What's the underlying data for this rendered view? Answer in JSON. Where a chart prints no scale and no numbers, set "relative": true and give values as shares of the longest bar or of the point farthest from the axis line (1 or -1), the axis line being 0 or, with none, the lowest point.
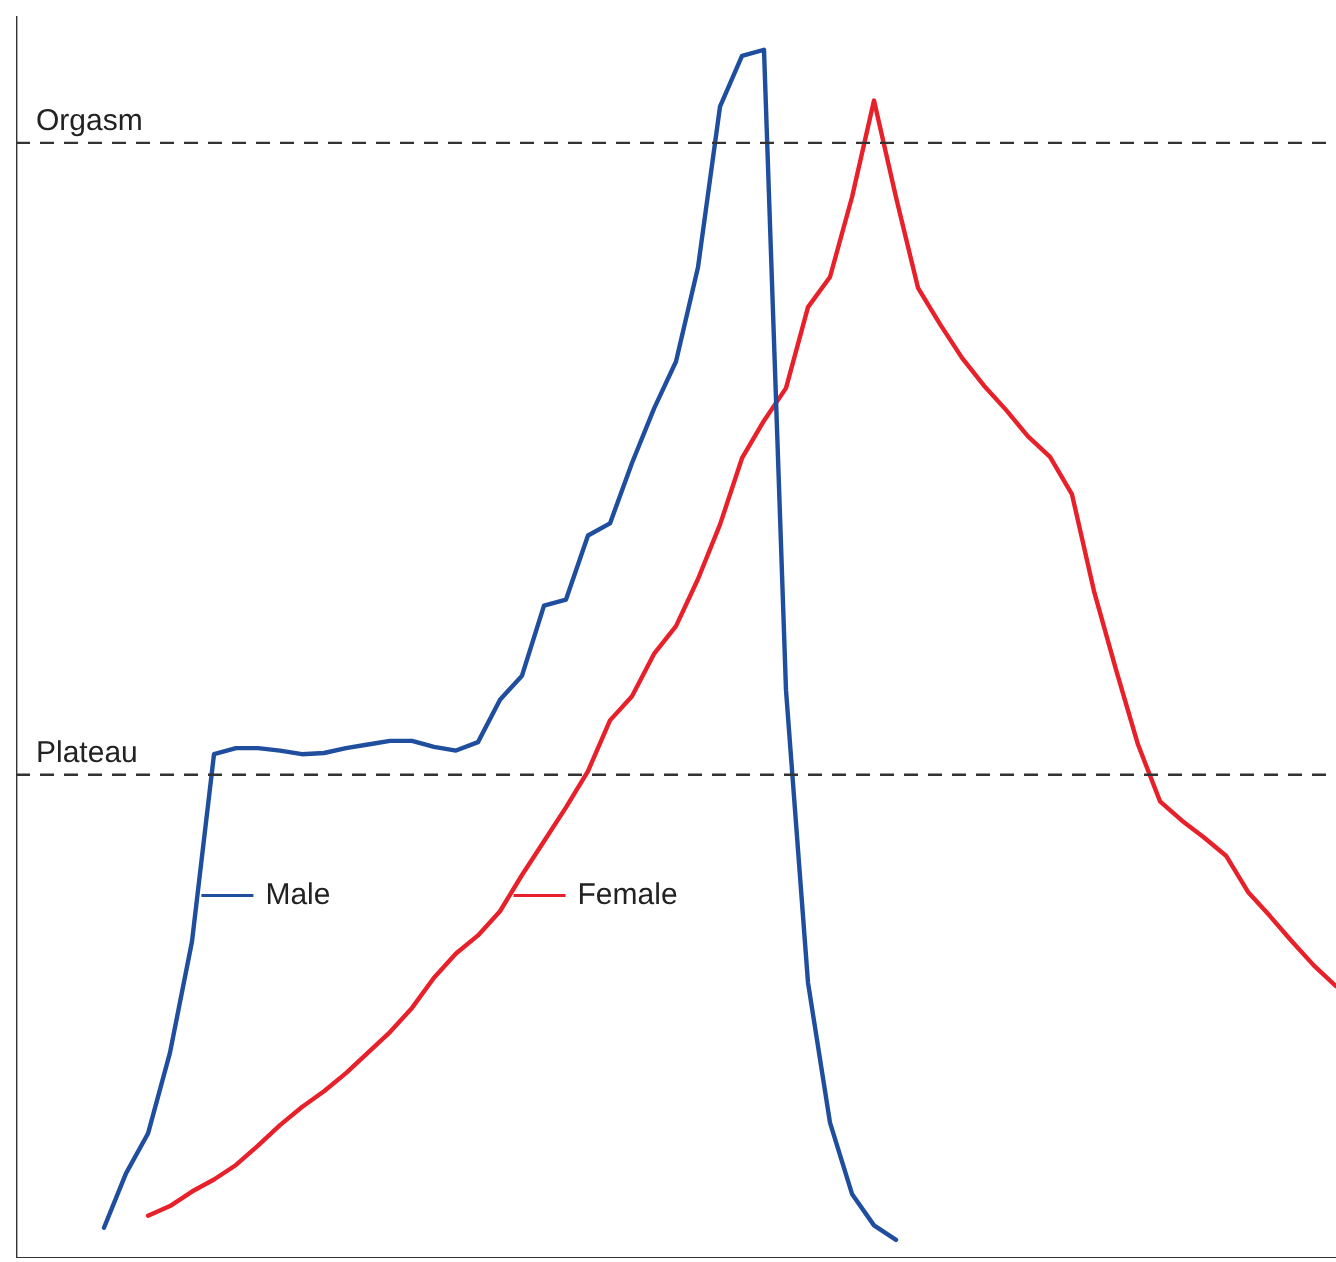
{
  "chart_data": {
    "type": "line",
    "relative": true,
    "grid": false,
    "legend": "bottom left",
    "marker": "none",
    "line_style": "solid",
    "categories": [
      null,
      null,
      null,
      null,
      null,
      null,
      null,
      null,
      null,
      null,
      null,
      null,
      null,
      null,
      null,
      null,
      null,
      null,
      null,
      null,
      null,
      null,
      null,
      null,
      null,
      null,
      null,
      null,
      null,
      null,
      null,
      null,
      null,
      null,
      null,
      null,
      null,
      null,
      null,
      null,
      null,
      null,
      null,
      null,
      null,
      null,
      null,
      null,
      null,
      null,
      null,
      null,
      null,
      null,
      null,
      null,
      null,
      null,
      null,
      null,
      null
    ],
    "series": [
      {
        "name": "Male",
        "color": "#1f4e9e",
        "values": [
          null,
          null,
          null,
          null,
          0.025,
          0.07,
          0.103,
          0.17,
          0.262,
          0.417,
          0.422,
          0.422,
          0.42,
          0.417,
          0.418,
          0.422,
          0.425,
          0.428,
          0.428,
          0.423,
          0.42,
          0.427,
          0.462,
          0.482,
          0.54,
          0.545,
          0.598,
          0.608,
          0.658,
          0.703,
          0.742,
          0.82,
          0.953,
          0.995,
          1,
          0.47,
          0.228,
          0.112,
          0.053,
          0.027,
          0.015,
          null,
          null,
          null,
          null,
          null,
          null,
          null,
          null,
          null,
          null,
          null,
          null,
          null,
          null,
          null,
          null,
          null,
          null,
          null,
          null
        ]
      },
      {
        "name": "Female",
        "color": "#e8202a",
        "values": [
          null,
          null,
          null,
          null,
          null,
          null,
          0.035,
          0.043,
          0.055,
          0.065,
          0.077,
          0.093,
          0.11,
          0.125,
          0.138,
          0.153,
          0.17,
          0.187,
          0.207,
          0.232,
          0.252,
          0.267,
          0.287,
          0.317,
          0.345,
          0.373,
          0.403,
          0.445,
          0.465,
          0.5,
          0.523,
          0.562,
          0.607,
          0.662,
          0.693,
          0.72,
          0.787,
          0.812,
          0.878,
          0.958,
          0.878,
          0.803,
          0.773,
          0.745,
          0.722,
          0.702,
          0.68,
          0.663,
          0.632,
          0.552,
          0.487,
          0.425,
          0.378,
          0.362,
          0.348,
          0.333,
          0.303,
          0.283,
          0.262,
          0.242,
          0.225
        ]
      }
    ],
    "ref_lines": [
      {
        "axis": "y",
        "value": 0.923,
        "label": "Orgasm",
        "color": "#333333",
        "line_style": "dashed"
      },
      {
        "axis": "y",
        "value": 0.4,
        "label": "Plateau",
        "color": "#333333",
        "line_style": "dashed"
      }
    ]
  }
}
